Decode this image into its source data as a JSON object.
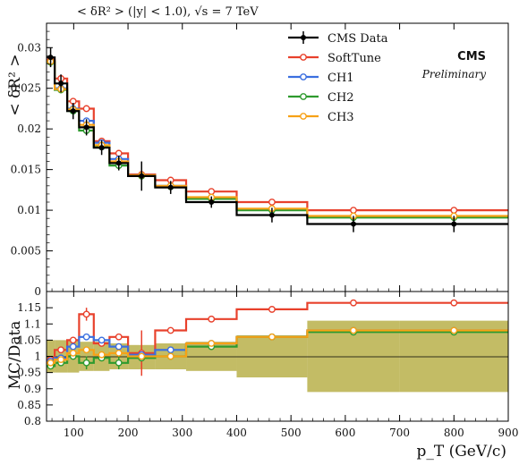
{
  "chart_data": {
    "type": "line",
    "header": "< δR² > (|y| < 1.0), √s = 7 TeV",
    "experiment": "CMS",
    "status": "Preliminary",
    "xlabel": "p_T (GeV/c)",
    "xlim": [
      50,
      900
    ],
    "x_ticks": [
      100,
      200,
      300,
      400,
      500,
      600,
      700,
      800,
      900
    ],
    "x_tick_labels": [
      "100",
      "200",
      "300",
      "400",
      "500",
      "600",
      "700",
      "800",
      "900"
    ],
    "bin_edges": [
      50,
      65,
      88,
      110,
      137,
      166,
      200,
      250,
      307,
      400,
      530,
      700,
      900
    ],
    "main": {
      "ylabel": "< δR² >",
      "ylim": [
        0,
        0.033
      ],
      "y_ticks": [
        0,
        0.005,
        0.01,
        0.015,
        0.02,
        0.025,
        0.03
      ],
      "y_tick_labels": [
        "0",
        "0.005",
        "0.01",
        "0.015",
        "0.02",
        "0.025",
        "0.03"
      ],
      "series": [
        {
          "name": "CMS Data",
          "color": "#000000",
          "values": [
            0.0288,
            0.0256,
            0.0222,
            0.0202,
            0.0177,
            0.0158,
            0.0142,
            0.0128,
            0.011,
            0.0094,
            0.0083,
            0.0083
          ],
          "errors": [
            0.0012,
            0.0011,
            0.001,
            0.001,
            0.0009,
            0.0009,
            0.0018,
            0.0008,
            0.0007,
            0.0009,
            0.001,
            0.001
          ]
        },
        {
          "name": "SoftTune",
          "color": "#e8412c",
          "values": [
            0.0285,
            0.0262,
            0.0234,
            0.0225,
            0.0185,
            0.017,
            0.0144,
            0.0137,
            0.0123,
            0.011,
            0.01,
            0.01
          ]
        },
        {
          "name": "CH1",
          "color": "#3b6fe0",
          "values": [
            0.0283,
            0.025,
            0.0225,
            0.021,
            0.0183,
            0.0163,
            0.0143,
            0.013,
            0.0115,
            0.0101,
            0.0092,
            0.0092
          ]
        },
        {
          "name": "CH2",
          "color": "#2e9a2e",
          "values": [
            0.0282,
            0.0248,
            0.0222,
            0.0198,
            0.0178,
            0.0155,
            0.0142,
            0.0129,
            0.0114,
            0.01,
            0.0091,
            0.0091
          ]
        },
        {
          "name": "CH3",
          "color": "#f7a116",
          "values": [
            0.0283,
            0.0249,
            0.0224,
            0.0205,
            0.018,
            0.016,
            0.0143,
            0.013,
            0.0116,
            0.0102,
            0.0093,
            0.0093
          ]
        }
      ]
    },
    "ratio": {
      "ylabel": "MC/Data",
      "ylim": [
        0.8,
        1.2
      ],
      "y_ticks": [
        0.8,
        0.85,
        0.9,
        0.95,
        1,
        1.05,
        1.1,
        1.15
      ],
      "y_tick_labels": [
        "0.8",
        "0.85",
        "0.9",
        "0.95",
        "1",
        "1.05",
        "1.1",
        "1.15"
      ],
      "band_color": "#b9b04a",
      "band_low": [
        0.95,
        0.95,
        0.95,
        0.955,
        0.955,
        0.96,
        0.96,
        0.96,
        0.955,
        0.935,
        0.89,
        0.89
      ],
      "band_high": [
        1.05,
        1.05,
        1.05,
        1.045,
        1.045,
        1.04,
        1.035,
        1.04,
        1.045,
        1.065,
        1.11,
        1.11
      ],
      "series": [
        {
          "name": "SoftTune",
          "color": "#e8412c",
          "values": [
            0.99,
            1.02,
            1.05,
            1.13,
            1.04,
            1.06,
            1.01,
            1.08,
            1.115,
            1.145,
            1.165,
            1.165
          ],
          "errors": [
            0,
            0,
            0,
            0.02,
            0,
            0,
            0.07,
            0,
            0,
            0,
            0,
            0
          ]
        },
        {
          "name": "CH1",
          "color": "#3b6fe0",
          "values": [
            0.985,
            0.995,
            1.03,
            1.06,
            1.05,
            1.03,
            1.005,
            1.02,
            1.04,
            1.06,
            1.08,
            1.08
          ]
        },
        {
          "name": "CH2",
          "color": "#2e9a2e",
          "values": [
            0.97,
            0.98,
            1.0,
            0.98,
            0.995,
            0.98,
            0.995,
            1.0,
            1.03,
            1.06,
            1.075,
            1.075
          ],
          "errors": [
            0,
            0,
            0,
            0.02,
            0,
            0.02,
            0,
            0,
            0,
            0,
            0,
            0
          ]
        },
        {
          "name": "CH3",
          "color": "#f7a116",
          "values": [
            0.98,
            0.99,
            1.01,
            1.02,
            1.005,
            1.01,
            1.0,
            1.0,
            1.04,
            1.06,
            1.08,
            1.08
          ]
        }
      ]
    }
  }
}
